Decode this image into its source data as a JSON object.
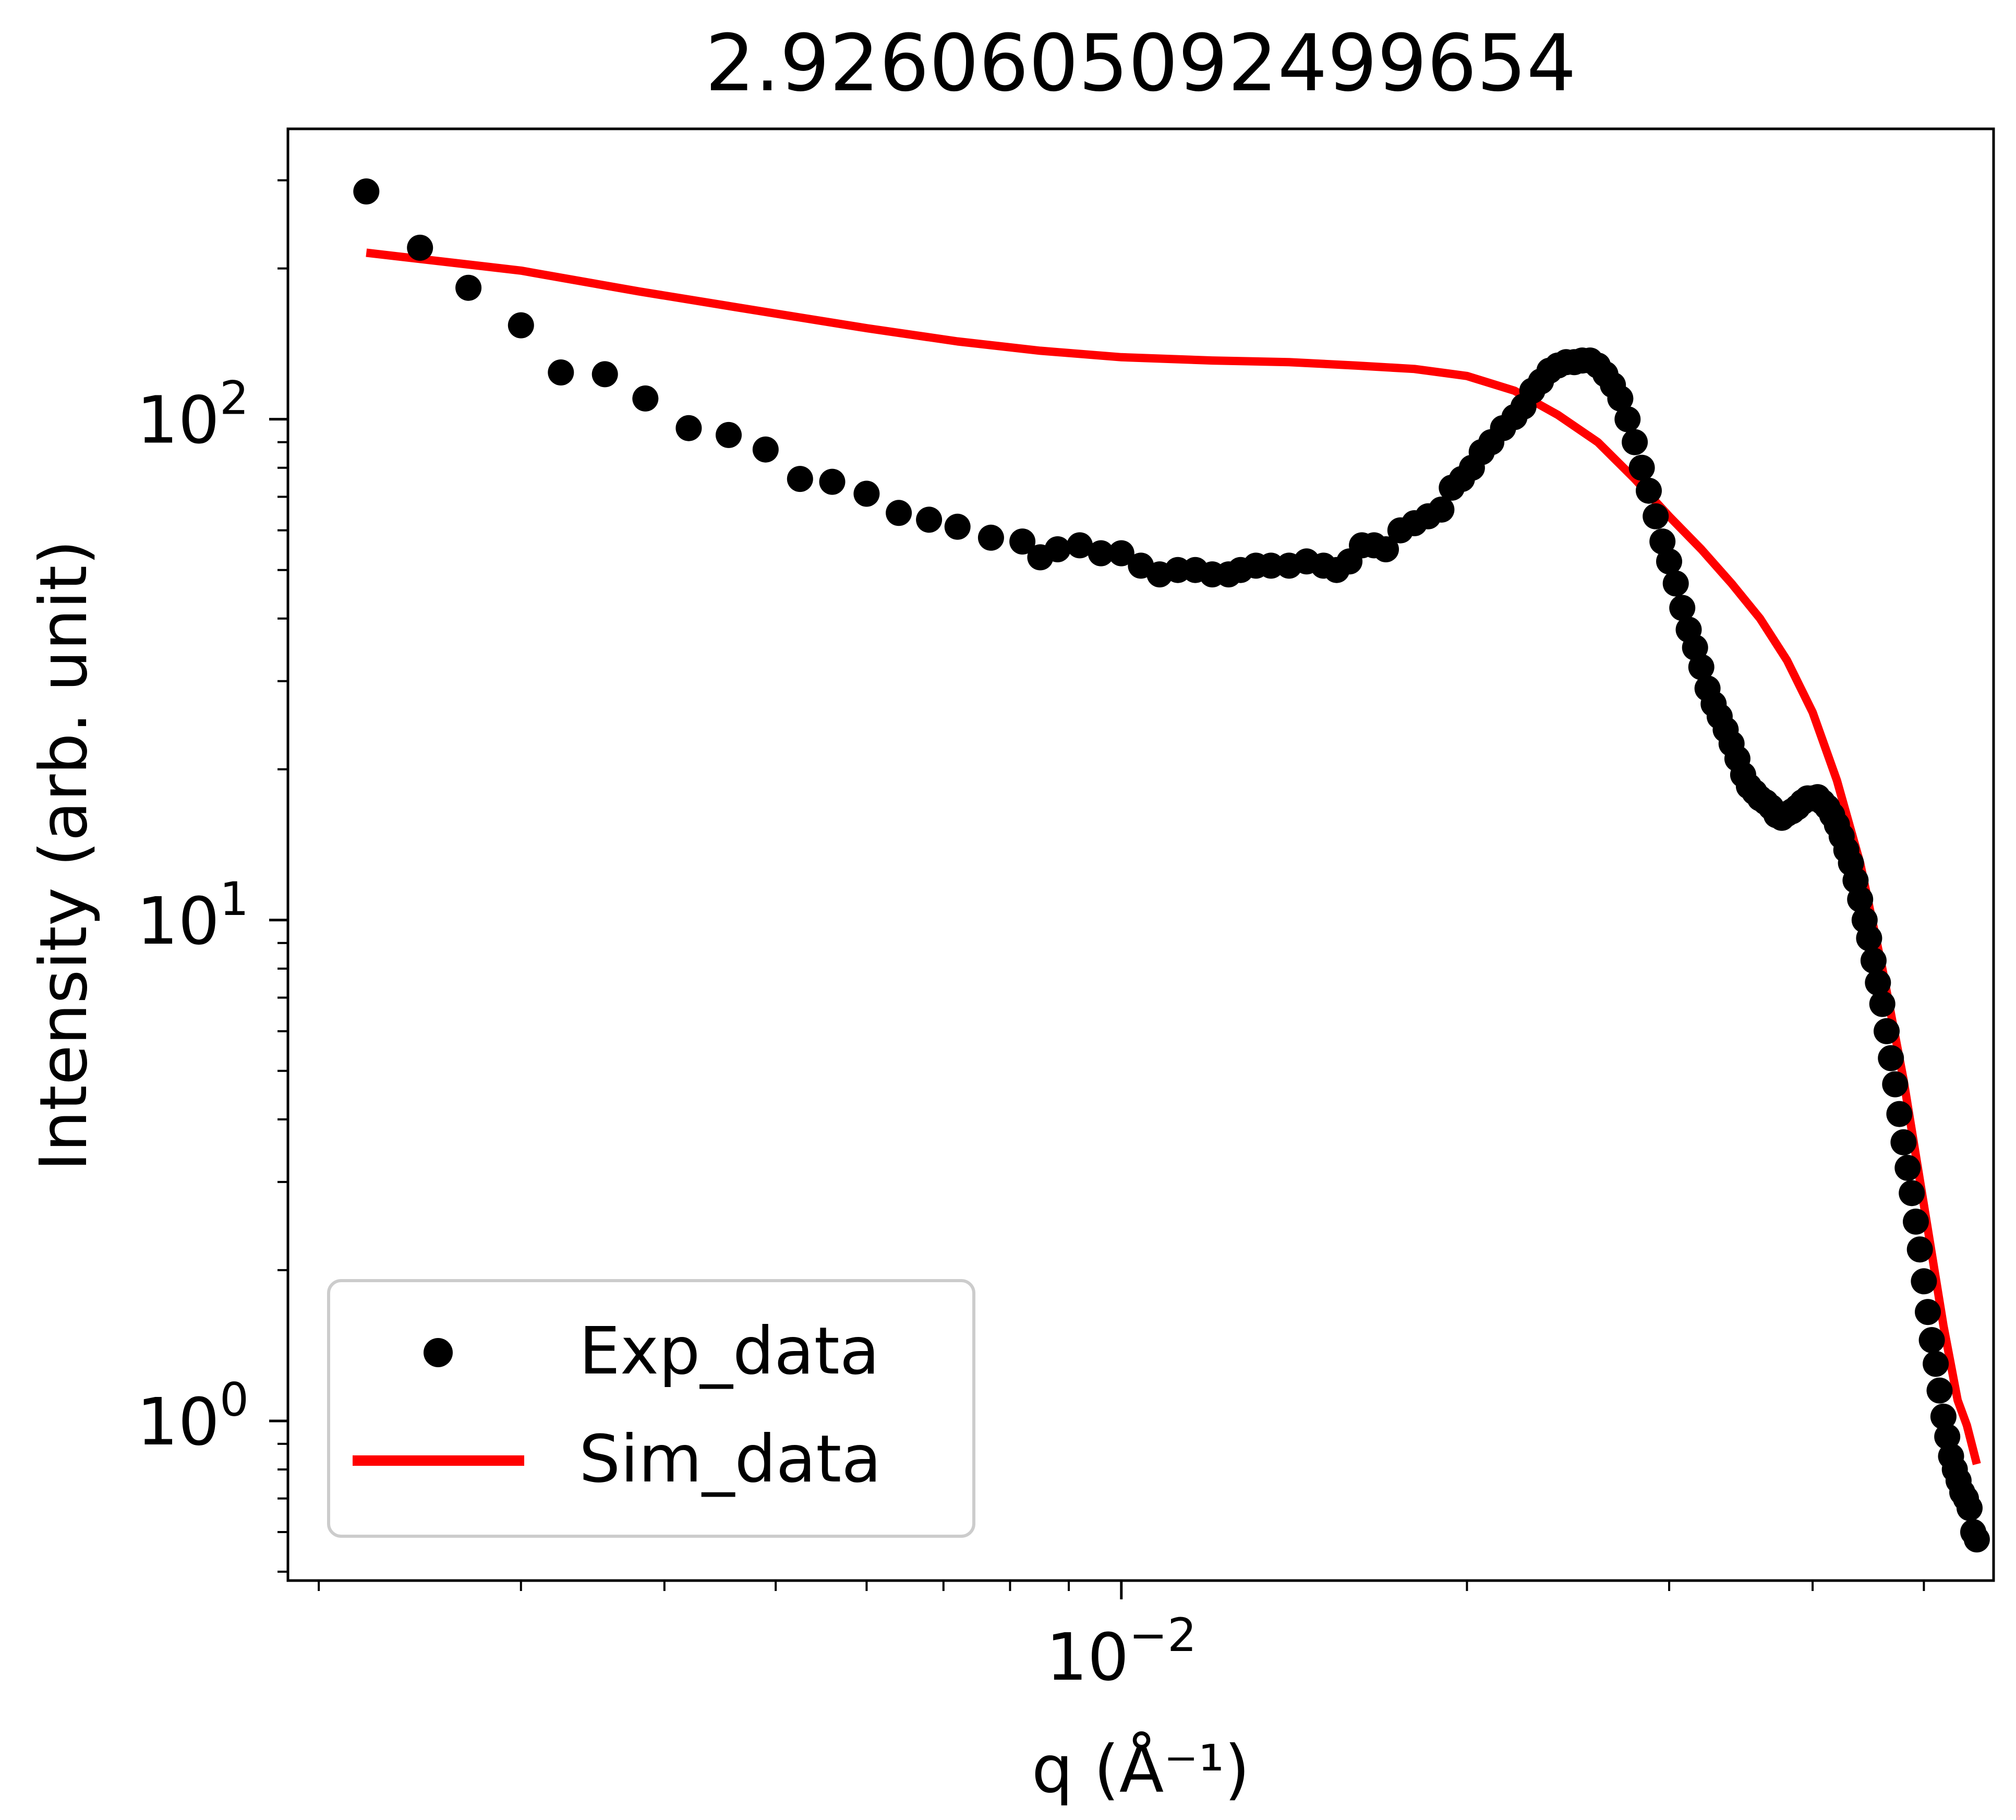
{
  "chart_data": {
    "type": "scatter",
    "title": "2.9260605092499654",
    "xlabel": "q (Å⁻¹)",
    "ylabel": "Intensity (arb. unit)",
    "xscale": "log",
    "yscale": "log",
    "xlim": [
      0.00188,
      0.0575
    ],
    "ylim": [
      0.48,
      380
    ],
    "grid": false,
    "legend_position": "lower-left",
    "x_major_ticks": [
      {
        "value": 0.01,
        "base": "10",
        "exp": "−2"
      }
    ],
    "x_minor_ticks": [
      0.002,
      0.003,
      0.004,
      0.005,
      0.006,
      0.007,
      0.008,
      0.009,
      0.02,
      0.03,
      0.04,
      0.05
    ],
    "y_major_ticks": [
      {
        "value": 1,
        "base": "10",
        "exp": "0"
      },
      {
        "value": 10,
        "base": "10",
        "exp": "1"
      },
      {
        "value": 100,
        "base": "10",
        "exp": "2"
      }
    ],
    "y_minor_ticks": [
      0.5,
      0.6,
      0.7,
      0.8,
      0.9,
      2,
      3,
      4,
      5,
      6,
      7,
      8,
      9,
      20,
      30,
      40,
      50,
      60,
      70,
      80,
      90,
      200,
      300
    ],
    "series": [
      {
        "name": "Exp_data",
        "kind": "scatter",
        "color": "#000000",
        "points": [
          [
            0.0022,
            285
          ],
          [
            0.00245,
            220
          ],
          [
            0.0027,
            183
          ],
          [
            0.003,
            154
          ],
          [
            0.00325,
            124
          ],
          [
            0.00355,
            123
          ],
          [
            0.00385,
            110
          ],
          [
            0.0042,
            96
          ],
          [
            0.00455,
            93
          ],
          [
            0.0049,
            87
          ],
          [
            0.00525,
            76
          ],
          [
            0.0056,
            75
          ],
          [
            0.006,
            71
          ],
          [
            0.0064,
            65
          ],
          [
            0.0068,
            63
          ],
          [
            0.0072,
            61
          ],
          [
            0.0077,
            58
          ],
          [
            0.0082,
            57
          ],
          [
            0.0085,
            53
          ],
          [
            0.0088,
            55
          ],
          [
            0.0092,
            56
          ],
          [
            0.0096,
            54
          ],
          [
            0.01,
            54
          ],
          [
            0.0104,
            51
          ],
          [
            0.0108,
            49
          ],
          [
            0.0112,
            50
          ],
          [
            0.0116,
            50
          ],
          [
            0.012,
            49
          ],
          [
            0.0124,
            49
          ],
          [
            0.0127,
            50
          ],
          [
            0.0131,
            51
          ],
          [
            0.0135,
            51
          ],
          [
            0.014,
            51
          ],
          [
            0.0145,
            52
          ],
          [
            0.015,
            51
          ],
          [
            0.0154,
            50
          ],
          [
            0.0158,
            52
          ],
          [
            0.0162,
            56
          ],
          [
            0.0166,
            56
          ],
          [
            0.017,
            55
          ],
          [
            0.0175,
            60
          ],
          [
            0.018,
            62
          ],
          [
            0.0185,
            64
          ],
          [
            0.019,
            66
          ],
          [
            0.0194,
            73
          ],
          [
            0.0198,
            76
          ],
          [
            0.0202,
            80
          ],
          [
            0.0206,
            86
          ],
          [
            0.021,
            90
          ],
          [
            0.0215,
            96
          ],
          [
            0.022,
            101
          ],
          [
            0.0224,
            106
          ],
          [
            0.0228,
            114
          ],
          [
            0.0232,
            119
          ],
          [
            0.0236,
            125
          ],
          [
            0.024,
            128
          ],
          [
            0.0244,
            130
          ],
          [
            0.0248,
            130
          ],
          [
            0.0252,
            131
          ],
          [
            0.0256,
            131
          ],
          [
            0.026,
            128
          ],
          [
            0.0264,
            123
          ],
          [
            0.0268,
            117
          ],
          [
            0.0272,
            110
          ],
          [
            0.0276,
            100
          ],
          [
            0.028,
            90
          ],
          [
            0.0284,
            80
          ],
          [
            0.0288,
            72
          ],
          [
            0.0292,
            64
          ],
          [
            0.0296,
            57
          ],
          [
            0.03,
            52
          ],
          [
            0.0304,
            47
          ],
          [
            0.0308,
            42
          ],
          [
            0.0312,
            38
          ],
          [
            0.0316,
            35
          ],
          [
            0.032,
            32
          ],
          [
            0.0324,
            29
          ],
          [
            0.0328,
            27
          ],
          [
            0.0332,
            25.5
          ],
          [
            0.0336,
            24
          ],
          [
            0.034,
            22.5
          ],
          [
            0.0344,
            21
          ],
          [
            0.0348,
            19.5
          ],
          [
            0.0352,
            18.5
          ],
          [
            0.0356,
            18
          ],
          [
            0.036,
            17.5
          ],
          [
            0.0364,
            17.2
          ],
          [
            0.0368,
            16.8
          ],
          [
            0.0372,
            16.2
          ],
          [
            0.0376,
            16
          ],
          [
            0.038,
            16.3
          ],
          [
            0.0384,
            16.5
          ],
          [
            0.0388,
            16.8
          ],
          [
            0.0392,
            17.2
          ],
          [
            0.0396,
            17.5
          ],
          [
            0.04,
            17.5
          ],
          [
            0.0404,
            17.6
          ],
          [
            0.0408,
            17.2
          ],
          [
            0.0412,
            16.8
          ],
          [
            0.0416,
            16.2
          ],
          [
            0.042,
            15.5
          ],
          [
            0.0424,
            14.7
          ],
          [
            0.0428,
            13.8
          ],
          [
            0.0432,
            13
          ],
          [
            0.0436,
            12
          ],
          [
            0.044,
            11
          ],
          [
            0.0444,
            10
          ],
          [
            0.0448,
            9.2
          ],
          [
            0.0452,
            8.3
          ],
          [
            0.0456,
            7.5
          ],
          [
            0.046,
            6.8
          ],
          [
            0.0464,
            6
          ],
          [
            0.0468,
            5.3
          ],
          [
            0.0472,
            4.7
          ],
          [
            0.0476,
            4.1
          ],
          [
            0.048,
            3.6
          ],
          [
            0.0484,
            3.2
          ],
          [
            0.0488,
            2.85
          ],
          [
            0.0492,
            2.5
          ],
          [
            0.0496,
            2.2
          ],
          [
            0.05,
            1.9
          ],
          [
            0.0504,
            1.65
          ],
          [
            0.0508,
            1.45
          ],
          [
            0.0512,
            1.3
          ],
          [
            0.0516,
            1.15
          ],
          [
            0.052,
            1.02
          ],
          [
            0.0524,
            0.93
          ],
          [
            0.0528,
            0.85
          ],
          [
            0.0532,
            0.8
          ],
          [
            0.0536,
            0.76
          ],
          [
            0.054,
            0.72
          ],
          [
            0.0544,
            0.7
          ],
          [
            0.0548,
            0.67
          ],
          [
            0.0552,
            0.6
          ],
          [
            0.0556,
            0.58
          ]
        ]
      },
      {
        "name": "Sim_data",
        "kind": "line",
        "color": "#ff0000",
        "points": [
          [
            0.0022,
            215
          ],
          [
            0.003,
            198
          ],
          [
            0.0038,
            180
          ],
          [
            0.0048,
            165
          ],
          [
            0.006,
            152
          ],
          [
            0.0072,
            143
          ],
          [
            0.0085,
            137
          ],
          [
            0.01,
            133
          ],
          [
            0.012,
            131
          ],
          [
            0.014,
            130
          ],
          [
            0.016,
            128
          ],
          [
            0.018,
            126
          ],
          [
            0.02,
            122
          ],
          [
            0.022,
            114
          ],
          [
            0.024,
            102
          ],
          [
            0.026,
            90
          ],
          [
            0.028,
            76
          ],
          [
            0.03,
            64
          ],
          [
            0.032,
            55
          ],
          [
            0.034,
            47
          ],
          [
            0.036,
            40
          ],
          [
            0.038,
            33
          ],
          [
            0.04,
            26
          ],
          [
            0.042,
            19
          ],
          [
            0.044,
            13
          ],
          [
            0.046,
            8
          ],
          [
            0.048,
            4.8
          ],
          [
            0.05,
            2.7
          ],
          [
            0.052,
            1.55
          ],
          [
            0.0535,
            1.1
          ],
          [
            0.0545,
            0.98
          ],
          [
            0.0556,
            0.82
          ]
        ]
      }
    ]
  }
}
